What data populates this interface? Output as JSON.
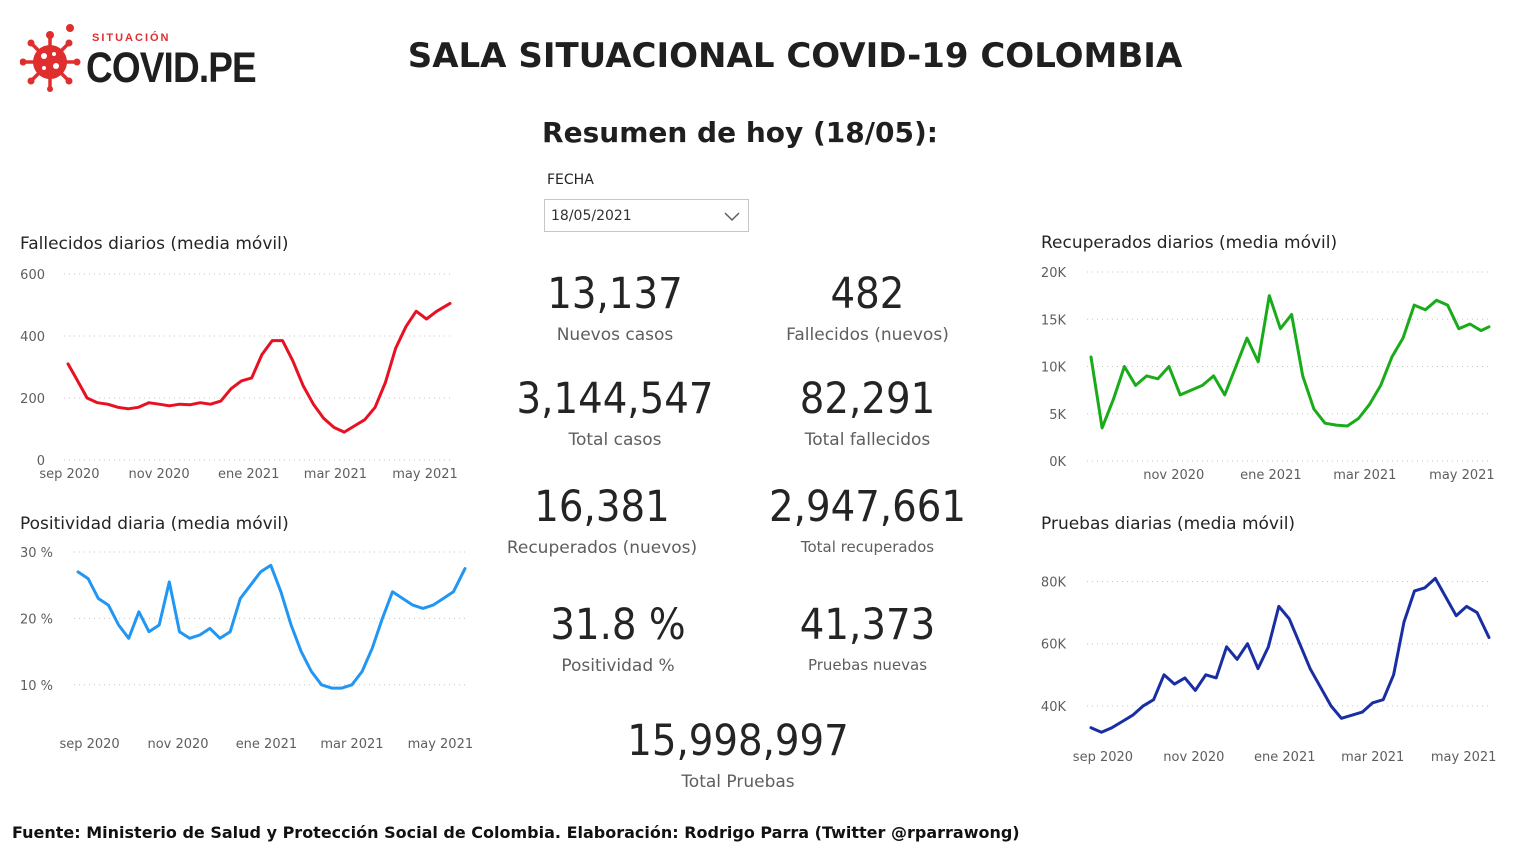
{
  "logo": {
    "kicker": "SITUACIÓN",
    "name": "COVID.PE",
    "accent_color": "#e02e2e",
    "icon": "virus-icon"
  },
  "header": {
    "title": "SALA SITUACIONAL COVID-19 COLOMBIA",
    "subtitle": "Resumen de hoy (18/05):"
  },
  "filter": {
    "label": "FECHA",
    "value": "18/05/2021",
    "icon": "chevron-down-icon"
  },
  "kpis": {
    "nuevos_casos": {
      "value": "13,137",
      "label": "Nuevos casos"
    },
    "fallecidos_nuevos": {
      "value": "482",
      "label": "Fallecidos (nuevos)"
    },
    "total_casos": {
      "value": "3,144,547",
      "label": "Total casos"
    },
    "total_fallecidos": {
      "value": "82,291",
      "label": "Total fallecidos"
    },
    "recuperados_nuevos": {
      "value": "16,381",
      "label": "Recuperados (nuevos)"
    },
    "total_recuperados": {
      "value": "2,947,661",
      "label": "Total recuperados"
    },
    "positividad": {
      "value": "31.8 %",
      "label": "Positividad %"
    },
    "pruebas_nuevas": {
      "value": "41,373",
      "label": "Pruebas nuevas"
    },
    "total_pruebas": {
      "value": "15,998,997",
      "label": "Total Pruebas"
    }
  },
  "footer": {
    "source": "Fuente: Ministerio de Salud y Protección Social de Colombia. Elaboración: Rodrigo Parra (Twitter @rparrawong)"
  },
  "chart_data": [
    {
      "id": "fallecidos",
      "type": "line",
      "title": "Fallecidos diarios (media móvil)",
      "color": "#e81123",
      "grid": true,
      "ylim": [
        0,
        600
      ],
      "yticks": [
        0,
        200,
        400,
        600
      ],
      "ytick_labels": [
        "0",
        "200",
        "400",
        "600"
      ],
      "xlim": [
        "2020-08-31",
        "2021-05-18"
      ],
      "xticks": [
        "2020-09-01",
        "2020-11-01",
        "2021-01-01",
        "2021-03-01",
        "2021-05-01"
      ],
      "xtick_labels": [
        "sep 2020",
        "nov 2020",
        "ene 2021",
        "mar 2021",
        "may 2021"
      ],
      "x": [
        "2020-08-31",
        "2020-09-06",
        "2020-09-13",
        "2020-09-20",
        "2020-09-27",
        "2020-10-04",
        "2020-10-11",
        "2020-10-18",
        "2020-10-25",
        "2020-11-01",
        "2020-11-08",
        "2020-11-15",
        "2020-11-22",
        "2020-11-29",
        "2020-12-06",
        "2020-12-13",
        "2020-12-20",
        "2020-12-27",
        "2021-01-03",
        "2021-01-10",
        "2021-01-17",
        "2021-01-24",
        "2021-01-31",
        "2021-02-07",
        "2021-02-14",
        "2021-02-21",
        "2021-02-28",
        "2021-03-07",
        "2021-03-14",
        "2021-03-21",
        "2021-03-28",
        "2021-04-04",
        "2021-04-11",
        "2021-04-18",
        "2021-04-25",
        "2021-05-02",
        "2021-05-09",
        "2021-05-18"
      ],
      "y": [
        310,
        260,
        200,
        185,
        180,
        170,
        165,
        170,
        185,
        180,
        175,
        180,
        178,
        185,
        180,
        190,
        230,
        255,
        265,
        340,
        385,
        385,
        320,
        240,
        180,
        135,
        105,
        90,
        110,
        130,
        170,
        250,
        360,
        430,
        480,
        455,
        480,
        505
      ]
    },
    {
      "id": "positividad",
      "type": "line",
      "title": "Positividad diaria (media móvil)",
      "color": "#2196f3",
      "grid": true,
      "ylim": [
        5,
        30
      ],
      "yticks": [
        10,
        20,
        30
      ],
      "ytick_labels": [
        "10 %",
        "20 %",
        "30 %"
      ],
      "xlim": [
        "2020-08-24",
        "2021-05-18"
      ],
      "xticks": [
        "2020-09-01",
        "2020-11-01",
        "2021-01-01",
        "2021-03-01",
        "2021-05-01"
      ],
      "xtick_labels": [
        "sep 2020",
        "nov 2020",
        "ene 2021",
        "mar 2021",
        "may 2021"
      ],
      "x": [
        "2020-08-24",
        "2020-08-31",
        "2020-09-07",
        "2020-09-14",
        "2020-09-21",
        "2020-09-28",
        "2020-10-05",
        "2020-10-12",
        "2020-10-19",
        "2020-10-26",
        "2020-11-02",
        "2020-11-09",
        "2020-11-16",
        "2020-11-23",
        "2020-11-30",
        "2020-12-07",
        "2020-12-14",
        "2020-12-21",
        "2020-12-28",
        "2021-01-04",
        "2021-01-11",
        "2021-01-18",
        "2021-01-25",
        "2021-02-01",
        "2021-02-08",
        "2021-02-15",
        "2021-02-22",
        "2021-03-01",
        "2021-03-08",
        "2021-03-15",
        "2021-03-22",
        "2021-03-29",
        "2021-04-05",
        "2021-04-12",
        "2021-04-19",
        "2021-04-26",
        "2021-05-03",
        "2021-05-10",
        "2021-05-18"
      ],
      "y": [
        27,
        26,
        23,
        22,
        19,
        17,
        21,
        18,
        19,
        25.5,
        18,
        17,
        17.5,
        18.5,
        17,
        18,
        23,
        25,
        27,
        28,
        24,
        19,
        15,
        12,
        10,
        9.5,
        9.5,
        10,
        12,
        15.5,
        20,
        24,
        23,
        22,
        21.5,
        22,
        23,
        24,
        27.5
      ]
    },
    {
      "id": "recuperados",
      "type": "line",
      "title": "Recuperados diarios (media móvil)",
      "color": "#1aab1a",
      "grid": true,
      "ylim": [
        0,
        20000
      ],
      "yticks": [
        0,
        5000,
        10000,
        15000,
        20000
      ],
      "ytick_labels": [
        "0K",
        "5K",
        "10K",
        "15K",
        "20K"
      ],
      "xlim": [
        "2020-09-10",
        "2021-05-18"
      ],
      "xticks": [
        "2020-11-01",
        "2021-01-01",
        "2021-03-01",
        "2021-05-01"
      ],
      "xtick_labels": [
        "nov 2020",
        "ene 2021",
        "mar 2021",
        "may 2021"
      ],
      "x": [
        "2020-09-10",
        "2020-09-17",
        "2020-09-24",
        "2020-10-01",
        "2020-10-08",
        "2020-10-15",
        "2020-10-22",
        "2020-10-29",
        "2020-11-05",
        "2020-11-12",
        "2020-11-19",
        "2020-11-26",
        "2020-12-03",
        "2020-12-10",
        "2020-12-17",
        "2020-12-24",
        "2020-12-31",
        "2021-01-07",
        "2021-01-14",
        "2021-01-21",
        "2021-01-28",
        "2021-02-04",
        "2021-02-11",
        "2021-02-18",
        "2021-02-25",
        "2021-03-04",
        "2021-03-11",
        "2021-03-18",
        "2021-03-25",
        "2021-04-01",
        "2021-04-08",
        "2021-04-15",
        "2021-04-22",
        "2021-04-29",
        "2021-05-06",
        "2021-05-13",
        "2021-05-18"
      ],
      "y": [
        11000,
        3500,
        6500,
        10000,
        8000,
        9000,
        8700,
        10000,
        7000,
        7500,
        8000,
        9000,
        7000,
        10000,
        13000,
        10500,
        17500,
        14000,
        15500,
        9000,
        5500,
        4000,
        3800,
        3700,
        4500,
        6000,
        8000,
        11000,
        13000,
        16500,
        16000,
        17000,
        16500,
        14000,
        14500,
        13800,
        14200
      ]
    },
    {
      "id": "pruebas",
      "type": "line",
      "title": "Pruebas diarias (media móvil)",
      "color": "#1a2ea3",
      "grid": true,
      "ylim": [
        30000,
        85000
      ],
      "yticks": [
        40000,
        60000,
        80000
      ],
      "ytick_labels": [
        "40K",
        "60K",
        "80K"
      ],
      "xlim": [
        "2020-08-24",
        "2021-05-18"
      ],
      "xticks": [
        "2020-09-01",
        "2020-11-01",
        "2021-01-01",
        "2021-03-01",
        "2021-05-01"
      ],
      "xtick_labels": [
        "sep 2020",
        "nov 2020",
        "ene 2021",
        "mar 2021",
        "may 2021"
      ],
      "x": [
        "2020-08-24",
        "2020-08-31",
        "2020-09-07",
        "2020-09-14",
        "2020-09-21",
        "2020-09-28",
        "2020-10-05",
        "2020-10-12",
        "2020-10-19",
        "2020-10-26",
        "2020-11-02",
        "2020-11-09",
        "2020-11-16",
        "2020-11-23",
        "2020-11-30",
        "2020-12-07",
        "2020-12-14",
        "2020-12-21",
        "2020-12-28",
        "2021-01-04",
        "2021-01-11",
        "2021-01-18",
        "2021-01-25",
        "2021-02-01",
        "2021-02-08",
        "2021-02-15",
        "2021-02-22",
        "2021-03-01",
        "2021-03-08",
        "2021-03-15",
        "2021-03-22",
        "2021-03-29",
        "2021-04-05",
        "2021-04-12",
        "2021-04-19",
        "2021-04-26",
        "2021-05-03",
        "2021-05-10",
        "2021-05-18"
      ],
      "y": [
        33000,
        31500,
        33000,
        35000,
        37000,
        40000,
        42000,
        50000,
        47000,
        49000,
        45000,
        50000,
        49000,
        59000,
        55000,
        60000,
        52000,
        59000,
        72000,
        68000,
        60000,
        52000,
        46000,
        40000,
        36000,
        37000,
        38000,
        41000,
        42000,
        50000,
        67000,
        77000,
        78000,
        81000,
        75000,
        69000,
        72000,
        70000,
        62000
      ]
    }
  ]
}
